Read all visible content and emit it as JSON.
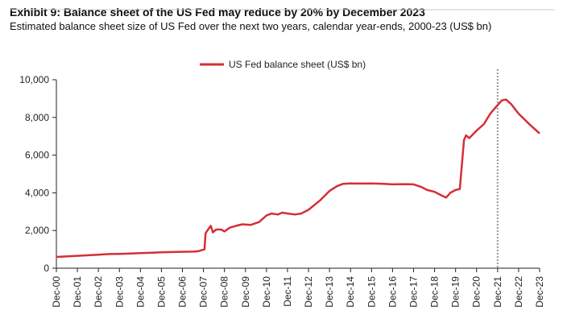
{
  "chart_data": {
    "type": "line",
    "title": "Exhibit 9: Balance sheet of the US Fed may reduce by 20% by December 2023",
    "subtitle": "Estimated balance sheet size of US Fed over the next two years, calendar year-ends, 2000-23 (US$ bn)",
    "xlabel": "",
    "ylabel": "",
    "ylim": [
      0,
      10000
    ],
    "yticks": [
      0,
      2000,
      4000,
      6000,
      8000,
      10000
    ],
    "ytick_labels": [
      "0",
      "2,000",
      "4,000",
      "6,000",
      "8,000",
      "10,000"
    ],
    "xtick_labels": [
      "Dec-00",
      "Dec-01",
      "Dec-02",
      "Dec-03",
      "Dec-04",
      "Dec-05",
      "Dec-06",
      "Dec-07",
      "Dec-08",
      "Dec-09",
      "Dec-10",
      "Dec-11",
      "Dec-12",
      "Dec-13",
      "Dec-14",
      "Dec-15",
      "Dec-16",
      "Dec-17",
      "Dec-18",
      "Dec-19",
      "Dec-20",
      "Dec-21",
      "Dec-22",
      "Dec-23"
    ],
    "legend": {
      "position": "top-center"
    },
    "grid": false,
    "marker_line": {
      "x": "Dec-21",
      "style": "dotted",
      "color": "#999999"
    },
    "series": [
      {
        "name": "US Fed balance sheet (US$ bn)",
        "color": "#d62e35",
        "points": [
          [
            2000.95,
            600
          ],
          [
            2001.5,
            630
          ],
          [
            2001.95,
            660
          ],
          [
            2002.5,
            690
          ],
          [
            2002.95,
            720
          ],
          [
            2003.5,
            750
          ],
          [
            2003.95,
            760
          ],
          [
            2004.5,
            780
          ],
          [
            2004.95,
            800
          ],
          [
            2005.5,
            820
          ],
          [
            2005.95,
            840
          ],
          [
            2006.5,
            860
          ],
          [
            2006.95,
            870
          ],
          [
            2007.5,
            880
          ],
          [
            2007.7,
            900
          ],
          [
            2008.0,
            1000
          ],
          [
            2008.05,
            1850
          ],
          [
            2008.2,
            2100
          ],
          [
            2008.3,
            2250
          ],
          [
            2008.4,
            1900
          ],
          [
            2008.55,
            2050
          ],
          [
            2008.8,
            2050
          ],
          [
            2008.95,
            1950
          ],
          [
            2009.2,
            2150
          ],
          [
            2009.5,
            2250
          ],
          [
            2009.8,
            2330
          ],
          [
            2010.2,
            2300
          ],
          [
            2010.6,
            2450
          ],
          [
            2010.95,
            2800
          ],
          [
            2011.2,
            2900
          ],
          [
            2011.5,
            2850
          ],
          [
            2011.7,
            2950
          ],
          [
            2011.95,
            2900
          ],
          [
            2012.3,
            2850
          ],
          [
            2012.6,
            2900
          ],
          [
            2012.95,
            3100
          ],
          [
            2013.5,
            3600
          ],
          [
            2013.95,
            4100
          ],
          [
            2014.3,
            4350
          ],
          [
            2014.6,
            4480
          ],
          [
            2014.95,
            4500
          ],
          [
            2015.5,
            4490
          ],
          [
            2015.95,
            4500
          ],
          [
            2016.5,
            4480
          ],
          [
            2016.95,
            4450
          ],
          [
            2017.5,
            4460
          ],
          [
            2017.95,
            4450
          ],
          [
            2018.3,
            4320
          ],
          [
            2018.6,
            4150
          ],
          [
            2018.95,
            4050
          ],
          [
            2019.3,
            3850
          ],
          [
            2019.5,
            3750
          ],
          [
            2019.7,
            4000
          ],
          [
            2019.95,
            4150
          ],
          [
            2020.15,
            4200
          ],
          [
            2020.25,
            5500
          ],
          [
            2020.35,
            6800
          ],
          [
            2020.45,
            7050
          ],
          [
            2020.6,
            6900
          ],
          [
            2020.95,
            7300
          ],
          [
            2021.3,
            7650
          ],
          [
            2021.6,
            8200
          ],
          [
            2021.95,
            8650
          ],
          [
            2022.15,
            8900
          ],
          [
            2022.35,
            8950
          ],
          [
            2022.6,
            8700
          ],
          [
            2022.95,
            8200
          ],
          [
            2023.5,
            7600
          ],
          [
            2023.95,
            7150
          ]
        ]
      }
    ]
  }
}
